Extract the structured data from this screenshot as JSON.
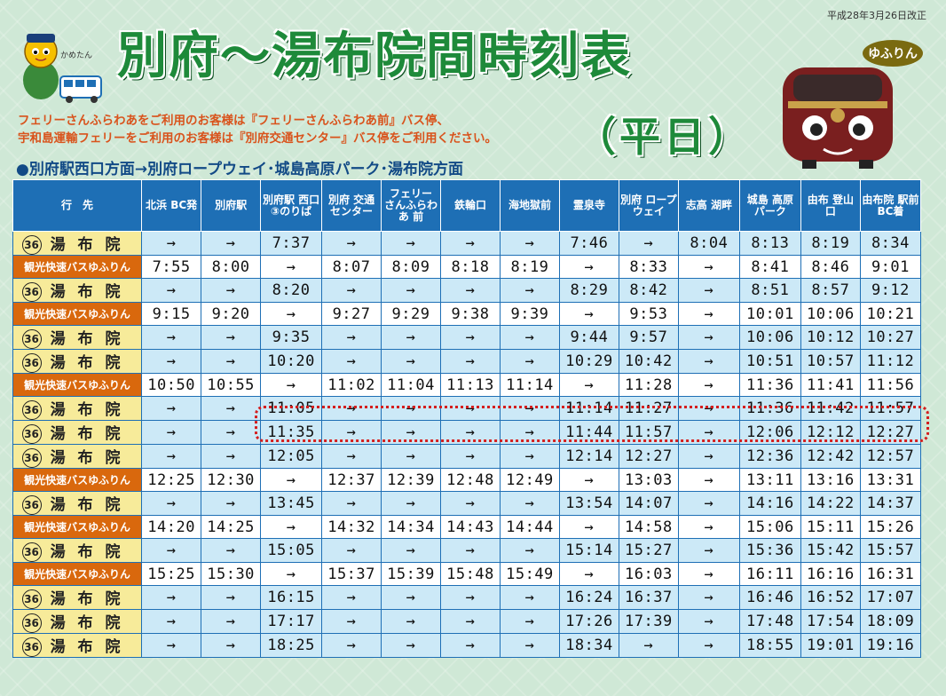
{
  "header": {
    "revised": "平成28年3月26日改正",
    "title": "別府～湯布院間時刻表",
    "subtitle": "（平日）",
    "mascot_name": "かめたん",
    "brand": "ゆふりん",
    "notice_line1": "フェリーさんふらわあをご利用のお客様は『フェリーさんふらわあ前』バス停、",
    "notice_line2": "宇和島運輸フェリーをご利用のお客様は『別府交通センター』バス停をご利用ください。",
    "direction": "●別府駅西口方面→別府ロープウェイ･城島高原パーク･湯布院方面"
  },
  "colors": {
    "title_green": "#1e8a3a",
    "header_blue": "#1e6fb5",
    "express_orange": "#d9680d",
    "local_yellow": "#f7eb9a",
    "local_blue": "#cce9f7",
    "highlight_red": "#d41e1e"
  },
  "table": {
    "headers": [
      "行　先",
      "北浜 BC発",
      "別府駅",
      "別府駅 西口 ③のりば",
      "別府 交通 センター",
      "フェリー さんふらわあ 前",
      "鉄輪口",
      "海地獄前",
      "霊泉寺",
      "別府 ロープ ウェイ",
      "志高 湖畔",
      "城島 高原 パーク",
      "由布 登山口",
      "由布院 駅前 BC着"
    ],
    "rows": [
      {
        "type": "local",
        "route": "36",
        "dest": "湯布院",
        "times": [
          "→",
          "→",
          "7:37",
          "→",
          "→",
          "→",
          "→",
          "7:46",
          "→",
          "8:04",
          "8:13",
          "8:19",
          "8:34"
        ]
      },
      {
        "type": "express",
        "dest": "観光快速バスゆふりん",
        "times": [
          "7:55",
          "8:00",
          "→",
          "8:07",
          "8:09",
          "8:18",
          "8:19",
          "→",
          "8:33",
          "→",
          "8:41",
          "8:46",
          "9:01"
        ]
      },
      {
        "type": "local",
        "route": "36",
        "dest": "湯布院",
        "times": [
          "→",
          "→",
          "8:20",
          "→",
          "→",
          "→",
          "→",
          "8:29",
          "8:42",
          "→",
          "8:51",
          "8:57",
          "9:12"
        ]
      },
      {
        "type": "express",
        "dest": "観光快速バスゆふりん",
        "times": [
          "9:15",
          "9:20",
          "→",
          "9:27",
          "9:29",
          "9:38",
          "9:39",
          "→",
          "9:53",
          "→",
          "10:01",
          "10:06",
          "10:21"
        ]
      },
      {
        "type": "local",
        "route": "36",
        "dest": "湯布院",
        "times": [
          "→",
          "→",
          "9:35",
          "→",
          "→",
          "→",
          "→",
          "9:44",
          "9:57",
          "→",
          "10:06",
          "10:12",
          "10:27"
        ]
      },
      {
        "type": "local",
        "route": "36",
        "dest": "湯布院",
        "times": [
          "→",
          "→",
          "10:20",
          "→",
          "→",
          "→",
          "→",
          "10:29",
          "10:42",
          "→",
          "10:51",
          "10:57",
          "11:12"
        ]
      },
      {
        "type": "express",
        "dest": "観光快速バスゆふりん",
        "times": [
          "10:50",
          "10:55",
          "→",
          "11:02",
          "11:04",
          "11:13",
          "11:14",
          "→",
          "11:28",
          "→",
          "11:36",
          "11:41",
          "11:56"
        ]
      },
      {
        "type": "local",
        "route": "36",
        "dest": "湯布院",
        "times": [
          "→",
          "→",
          "11:05",
          "→",
          "→",
          "→",
          "→",
          "11:14",
          "11:27",
          "→",
          "11:36",
          "11:42",
          "11:57"
        ]
      },
      {
        "type": "local",
        "route": "36",
        "dest": "湯布院",
        "times": [
          "→",
          "→",
          "11:35",
          "→",
          "→",
          "→",
          "→",
          "11:44",
          "11:57",
          "→",
          "12:06",
          "12:12",
          "12:27"
        ]
      },
      {
        "type": "local",
        "route": "36",
        "dest": "湯布院",
        "times": [
          "→",
          "→",
          "12:05",
          "→",
          "→",
          "→",
          "→",
          "12:14",
          "12:27",
          "→",
          "12:36",
          "12:42",
          "12:57"
        ]
      },
      {
        "type": "express",
        "dest": "観光快速バスゆふりん",
        "times": [
          "12:25",
          "12:30",
          "→",
          "12:37",
          "12:39",
          "12:48",
          "12:49",
          "→",
          "13:03",
          "→",
          "13:11",
          "13:16",
          "13:31"
        ]
      },
      {
        "type": "local",
        "route": "36",
        "dest": "湯布院",
        "times": [
          "→",
          "→",
          "13:45",
          "→",
          "→",
          "→",
          "→",
          "13:54",
          "14:07",
          "→",
          "14:16",
          "14:22",
          "14:37"
        ]
      },
      {
        "type": "express",
        "dest": "観光快速バスゆふりん",
        "times": [
          "14:20",
          "14:25",
          "→",
          "14:32",
          "14:34",
          "14:43",
          "14:44",
          "→",
          "14:58",
          "→",
          "15:06",
          "15:11",
          "15:26"
        ]
      },
      {
        "type": "local",
        "route": "36",
        "dest": "湯布院",
        "times": [
          "→",
          "→",
          "15:05",
          "→",
          "→",
          "→",
          "→",
          "15:14",
          "15:27",
          "→",
          "15:36",
          "15:42",
          "15:57"
        ]
      },
      {
        "type": "express",
        "dest": "観光快速バスゆふりん",
        "times": [
          "15:25",
          "15:30",
          "→",
          "15:37",
          "15:39",
          "15:48",
          "15:49",
          "→",
          "16:03",
          "→",
          "16:11",
          "16:16",
          "16:31"
        ]
      },
      {
        "type": "local",
        "route": "36",
        "dest": "湯布院",
        "times": [
          "→",
          "→",
          "16:15",
          "→",
          "→",
          "→",
          "→",
          "16:24",
          "16:37",
          "→",
          "16:46",
          "16:52",
          "17:07"
        ]
      },
      {
        "type": "local",
        "route": "36",
        "dest": "湯布院",
        "times": [
          "→",
          "→",
          "17:17",
          "→",
          "→",
          "→",
          "→",
          "17:26",
          "17:39",
          "→",
          "17:48",
          "17:54",
          "18:09"
        ]
      },
      {
        "type": "local",
        "route": "36",
        "dest": "湯布院",
        "times": [
          "→",
          "→",
          "18:25",
          "→",
          "→",
          "→",
          "→",
          "18:34",
          "→",
          "→",
          "18:55",
          "19:01",
          "19:16"
        ]
      }
    ]
  }
}
